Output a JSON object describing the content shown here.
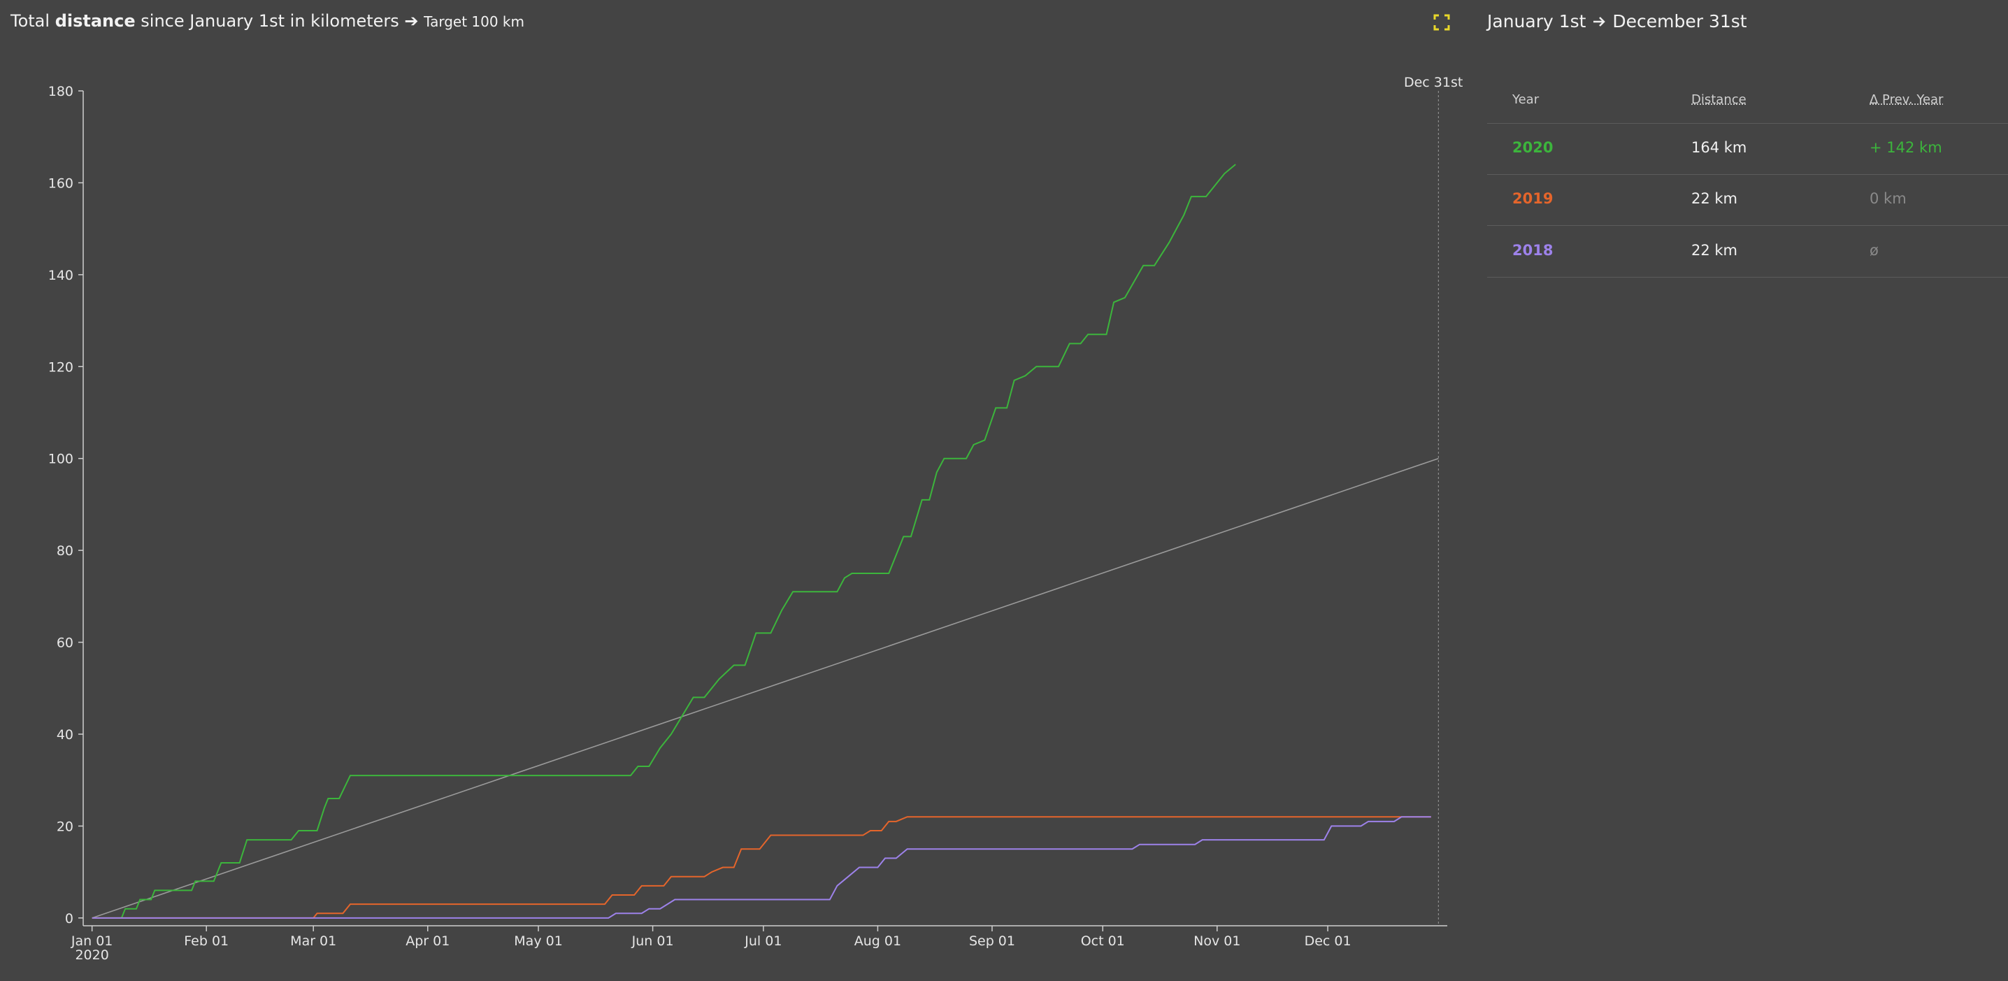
{
  "header": {
    "title_parts": [
      "Total ",
      "distance",
      " since January 1st in kilometers ➔ ",
      "Target 100 km"
    ]
  },
  "chart_data": {
    "type": "line",
    "x_sublabel": "2020",
    "marker": {
      "x": 365,
      "label": "Dec 31st"
    },
    "xlim": [
      -2.4,
      367.4
    ],
    "ylim": [
      -1.7,
      180
    ],
    "xticks": [
      {
        "value": 0,
        "label": "Jan 01"
      },
      {
        "value": 31,
        "label": "Feb 01"
      },
      {
        "value": 60,
        "label": "Mar 01"
      },
      {
        "value": 91,
        "label": "Apr 01"
      },
      {
        "value": 121,
        "label": "May 01"
      },
      {
        "value": 152,
        "label": "Jun 01"
      },
      {
        "value": 182,
        "label": "Jul 01"
      },
      {
        "value": 213,
        "label": "Aug 01"
      },
      {
        "value": 244,
        "label": "Sep 01"
      },
      {
        "value": 274,
        "label": "Oct 01"
      },
      {
        "value": 305,
        "label": "Nov 01"
      },
      {
        "value": 335,
        "label": "Dec 01"
      }
    ],
    "yticks": [
      0,
      20,
      40,
      60,
      80,
      100,
      120,
      140,
      160,
      180
    ],
    "target": {
      "x": [
        0,
        365
      ],
      "values": [
        0,
        100
      ],
      "color": "#9a9a9a"
    },
    "series": [
      {
        "name": "2020",
        "color": "#3cb53c",
        "x": [
          0,
          8,
          9,
          12,
          13,
          16,
          17,
          27,
          28,
          33,
          35,
          40,
          42,
          54,
          56,
          61,
          63,
          64,
          67,
          70,
          146,
          148,
          151,
          154,
          157,
          160,
          163,
          166,
          170,
          174,
          177,
          180,
          184,
          187,
          190,
          202,
          204,
          206,
          216,
          220,
          222,
          225,
          227,
          229,
          231,
          237,
          239,
          242,
          245,
          248,
          250,
          253,
          256,
          262,
          265,
          268,
          270,
          275,
          277,
          280,
          285,
          288,
          292,
          294,
          296,
          298,
          302,
          307,
          310
        ],
        "values": [
          0,
          0,
          2,
          2,
          4,
          4,
          6,
          6,
          8,
          8,
          12,
          12,
          17,
          17,
          19,
          19,
          24,
          26,
          26,
          31,
          31,
          33,
          33,
          37,
          40,
          44,
          48,
          48,
          52,
          55,
          55,
          62,
          62,
          67,
          71,
          71,
          74,
          75,
          75,
          83,
          83,
          91,
          91,
          97,
          100,
          100,
          103,
          104,
          111,
          111,
          117,
          118,
          120,
          120,
          125,
          125,
          127,
          127,
          134,
          135,
          142,
          142,
          147,
          150,
          153,
          157,
          157,
          162,
          164
        ]
      },
      {
        "name": "2019",
        "color": "#e5652b",
        "x": [
          0,
          60,
          61,
          68,
          70,
          139,
          141,
          147,
          149,
          155,
          157,
          166,
          168,
          171,
          174,
          176,
          181,
          184,
          209,
          211,
          214,
          216,
          218,
          221,
          363
        ],
        "values": [
          0,
          0,
          1,
          1,
          3,
          3,
          5,
          5,
          7,
          7,
          9,
          9,
          10,
          11,
          11,
          15,
          15,
          18,
          18,
          19,
          19,
          21,
          21,
          22,
          22
        ]
      },
      {
        "name": "2018",
        "color": "#9d82ea",
        "x": [
          0,
          140,
          142,
          149,
          151,
          154,
          156,
          158,
          200,
          202,
          205,
          208,
          213,
          215,
          218,
          221,
          282,
          284,
          299,
          301,
          334,
          336,
          344,
          346,
          353,
          355,
          363
        ],
        "values": [
          0,
          0,
          1,
          1,
          2,
          2,
          3,
          4,
          4,
          7,
          9,
          11,
          11,
          13,
          13,
          15,
          15,
          16,
          16,
          17,
          17,
          20,
          20,
          21,
          21,
          22,
          22
        ]
      }
    ]
  },
  "table": {
    "title_parts": [
      "January 1st",
      "December 31st"
    ],
    "columns": [
      "Year",
      "Distance",
      "Δ Prev. Year"
    ],
    "rows": [
      [
        "164 km",
        "+ 142 km"
      ],
      [
        "22 km",
        "0 km"
      ],
      [
        "22 km",
        "ø"
      ]
    ],
    "delta_colors": [
      "#3cb53c",
      "#8a8a8a",
      "#8a8a8a"
    ]
  }
}
